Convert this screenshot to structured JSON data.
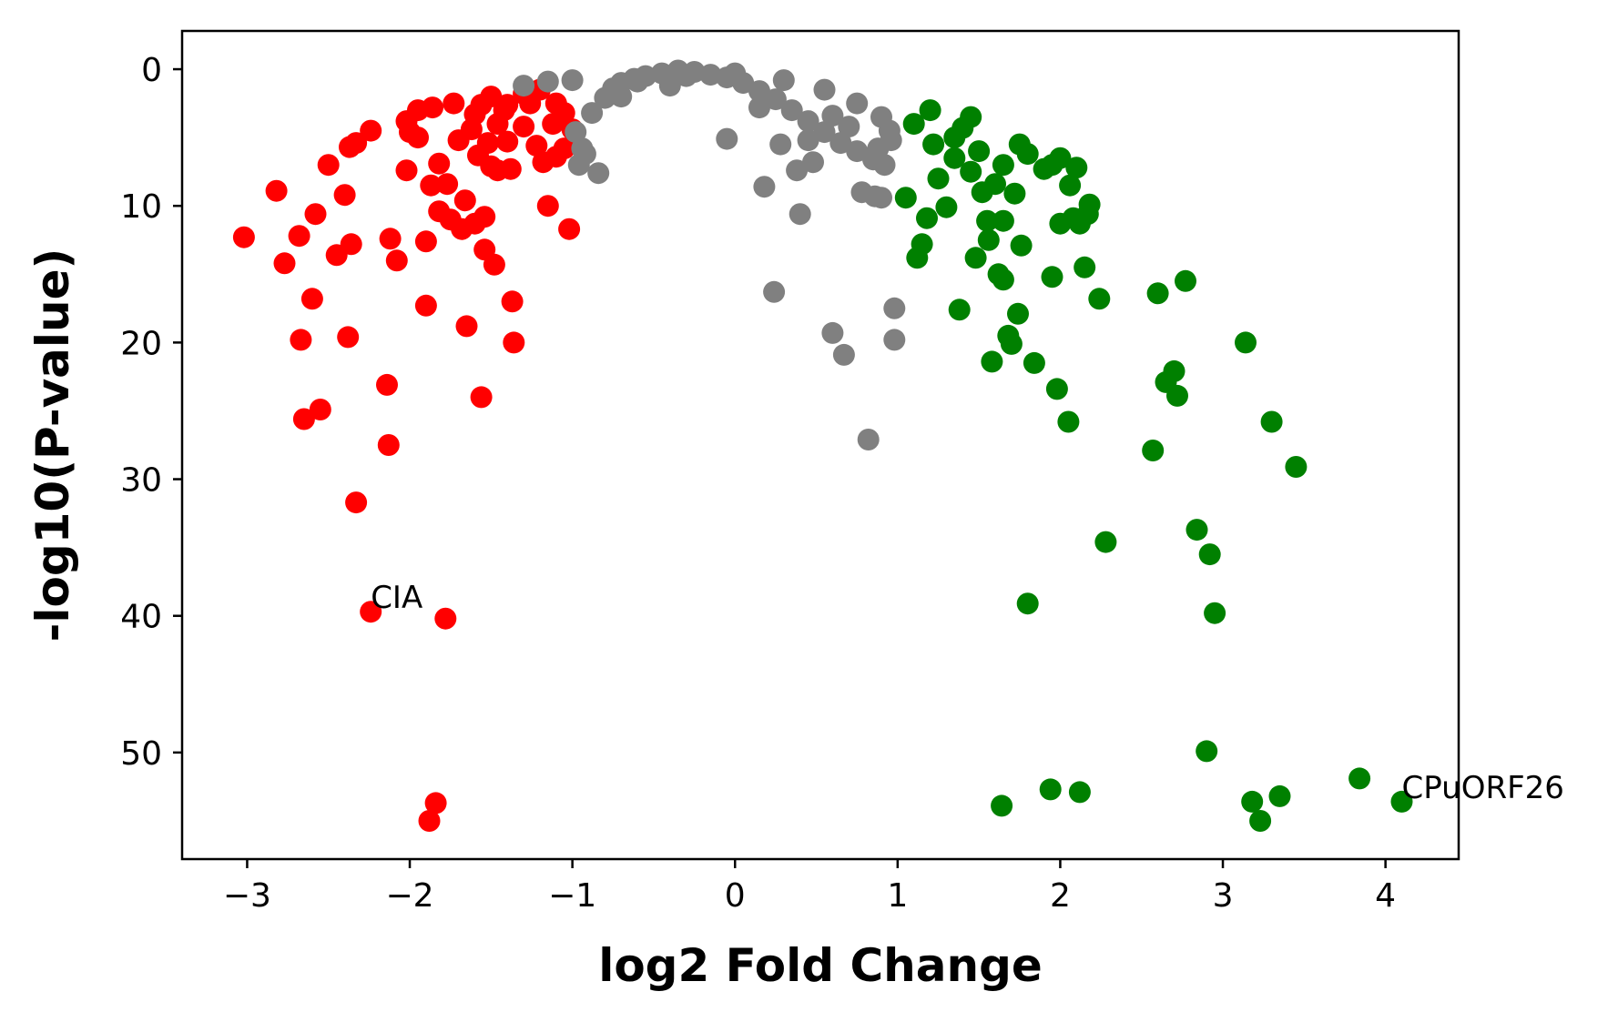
{
  "chart_data": {
    "type": "scatter",
    "title": "",
    "xlabel": "log2 Fold Change",
    "ylabel": "-log10(P-value)",
    "xlim": [
      -3.4,
      4.45
    ],
    "ylim": [
      -2.8,
      57.8
    ],
    "y_inverted": true,
    "grid": false,
    "legend": "none",
    "x_ticks": [
      -3,
      -2,
      -1,
      0,
      1,
      2,
      3,
      4
    ],
    "x_tick_labels": [
      "−3",
      "−2",
      "−1",
      "0",
      "1",
      "2",
      "3",
      "4"
    ],
    "y_ticks": [
      0,
      10,
      20,
      30,
      40,
      50
    ],
    "y_tick_labels": [
      "0",
      "10",
      "20",
      "30",
      "40",
      "50"
    ],
    "series": [
      {
        "color": "#ff0000",
        "points": [
          [
            -3.02,
            12.3
          ],
          [
            -2.82,
            8.9
          ],
          [
            -2.77,
            14.2
          ],
          [
            -2.68,
            12.2
          ],
          [
            -2.67,
            19.8
          ],
          [
            -2.65,
            25.6
          ],
          [
            -2.6,
            16.8
          ],
          [
            -2.58,
            10.6
          ],
          [
            -2.55,
            24.9
          ],
          [
            -2.5,
            7.0
          ],
          [
            -2.45,
            13.6
          ],
          [
            -2.4,
            9.2
          ],
          [
            -2.38,
            19.6
          ],
          [
            -2.37,
            5.7
          ],
          [
            -2.36,
            12.8
          ],
          [
            -2.33,
            5.4
          ],
          [
            -2.33,
            31.7
          ],
          [
            -2.24,
            4.5
          ],
          [
            -2.24,
            39.7
          ],
          [
            -2.14,
            23.1
          ],
          [
            -2.13,
            27.5
          ],
          [
            -2.12,
            12.4
          ],
          [
            -2.08,
            14.0
          ],
          [
            -2.02,
            3.8
          ],
          [
            -2.02,
            7.4
          ],
          [
            -2.0,
            4.6
          ],
          [
            -1.95,
            3.0
          ],
          [
            -1.95,
            5.0
          ],
          [
            -1.9,
            12.6
          ],
          [
            -1.9,
            17.3
          ],
          [
            -1.88,
            55.0
          ],
          [
            -1.87,
            8.5
          ],
          [
            -1.86,
            2.8
          ],
          [
            -1.84,
            53.7
          ],
          [
            -1.82,
            10.4
          ],
          [
            -1.82,
            6.9
          ],
          [
            -1.78,
            40.2
          ],
          [
            -1.77,
            8.4
          ],
          [
            -1.75,
            11.0
          ],
          [
            -1.73,
            2.5
          ],
          [
            -1.7,
            5.2
          ],
          [
            -1.68,
            11.7
          ],
          [
            -1.66,
            9.6
          ],
          [
            -1.65,
            18.8
          ],
          [
            -1.62,
            4.4
          ],
          [
            -1.6,
            11.3
          ],
          [
            -1.58,
            6.3
          ],
          [
            -1.56,
            2.6
          ],
          [
            -1.56,
            24.0
          ],
          [
            -1.54,
            10.8
          ],
          [
            -1.54,
            13.2
          ],
          [
            -1.52,
            5.4
          ],
          [
            -1.5,
            7.1
          ],
          [
            -1.48,
            14.3
          ],
          [
            -1.46,
            4.0
          ],
          [
            -1.46,
            7.4
          ],
          [
            -1.42,
            3.0
          ],
          [
            -1.4,
            5.3
          ],
          [
            -1.38,
            7.3
          ],
          [
            -1.37,
            17.0
          ],
          [
            -1.36,
            20.0
          ],
          [
            -1.3,
            4.2
          ],
          [
            -1.26,
            2.5
          ],
          [
            -1.22,
            5.6
          ],
          [
            -1.18,
            6.8
          ],
          [
            -1.15,
            10.0
          ],
          [
            -1.12,
            4.0
          ],
          [
            -1.1,
            2.5
          ],
          [
            -1.1,
            6.4
          ],
          [
            -1.02,
            11.7
          ],
          [
            -1.0,
            4.4
          ],
          [
            -1.3,
            1.8
          ],
          [
            -1.05,
            3.2
          ],
          [
            -1.5,
            2.0
          ],
          [
            -1.2,
            1.5
          ],
          [
            -1.6,
            3.3
          ],
          [
            -1.4,
            2.6
          ],
          [
            -1.05,
            5.8
          ]
        ]
      },
      {
        "color": "#808080",
        "points": [
          [
            -0.98,
            4.6
          ],
          [
            -0.96,
            7.0
          ],
          [
            -0.94,
            5.8
          ],
          [
            -0.92,
            6.2
          ],
          [
            -0.84,
            7.6
          ],
          [
            -0.88,
            3.2
          ],
          [
            -0.8,
            2.1
          ],
          [
            -0.75,
            1.4
          ],
          [
            -0.7,
            1.0
          ],
          [
            -0.62,
            0.7
          ],
          [
            -0.55,
            0.5
          ],
          [
            -0.45,
            0.3
          ],
          [
            -0.35,
            0.1
          ],
          [
            -0.25,
            0.2
          ],
          [
            -0.15,
            0.4
          ],
          [
            -0.05,
            0.6
          ],
          [
            0.05,
            1.0
          ],
          [
            0.15,
            1.6
          ],
          [
            0.25,
            2.2
          ],
          [
            0.35,
            3.0
          ],
          [
            0.45,
            3.8
          ],
          [
            0.55,
            4.6
          ],
          [
            0.65,
            5.4
          ],
          [
            0.75,
            6.0
          ],
          [
            0.85,
            6.6
          ],
          [
            0.92,
            7.0
          ],
          [
            0.96,
            5.2
          ],
          [
            -0.05,
            5.1
          ],
          [
            0.18,
            8.6
          ],
          [
            0.28,
            5.5
          ],
          [
            0.38,
            7.4
          ],
          [
            0.4,
            10.6
          ],
          [
            0.24,
            16.3
          ],
          [
            0.48,
            6.8
          ],
          [
            0.6,
            19.3
          ],
          [
            0.67,
            20.9
          ],
          [
            0.78,
            9.0
          ],
          [
            0.82,
            27.1
          ],
          [
            0.86,
            9.3
          ],
          [
            0.9,
            9.4
          ],
          [
            0.98,
            17.5
          ],
          [
            0.98,
            19.8
          ],
          [
            -1.3,
            1.2
          ],
          [
            -1.15,
            0.9
          ],
          [
            -1.0,
            0.8
          ],
          [
            -0.6,
            0.9
          ],
          [
            -0.3,
            0.5
          ],
          [
            0.0,
            0.3
          ],
          [
            0.3,
            0.8
          ],
          [
            0.55,
            1.5
          ],
          [
            0.75,
            2.5
          ],
          [
            0.9,
            3.5
          ],
          [
            0.95,
            4.5
          ],
          [
            -0.4,
            1.2
          ],
          [
            0.15,
            2.8
          ],
          [
            0.6,
            3.4
          ],
          [
            -0.7,
            2.0
          ],
          [
            0.45,
            5.2
          ],
          [
            0.7,
            4.2
          ],
          [
            0.88,
            5.8
          ]
        ]
      },
      {
        "color": "#008000",
        "points": [
          [
            1.05,
            9.4
          ],
          [
            1.12,
            13.8
          ],
          [
            1.15,
            12.8
          ],
          [
            1.18,
            10.9
          ],
          [
            1.22,
            5.5
          ],
          [
            1.25,
            8.0
          ],
          [
            1.3,
            10.1
          ],
          [
            1.35,
            6.5
          ],
          [
            1.38,
            17.6
          ],
          [
            1.4,
            4.3
          ],
          [
            1.45,
            7.5
          ],
          [
            1.48,
            13.8
          ],
          [
            1.52,
            9.0
          ],
          [
            1.55,
            11.1
          ],
          [
            1.56,
            12.5
          ],
          [
            1.58,
            21.4
          ],
          [
            1.62,
            15.0
          ],
          [
            1.64,
            53.9
          ],
          [
            1.65,
            11.1
          ],
          [
            1.65,
            15.4
          ],
          [
            1.68,
            19.5
          ],
          [
            1.7,
            20.1
          ],
          [
            1.72,
            9.1
          ],
          [
            1.74,
            17.9
          ],
          [
            1.76,
            12.9
          ],
          [
            1.8,
            39.1
          ],
          [
            1.84,
            21.5
          ],
          [
            1.9,
            7.3
          ],
          [
            1.94,
            52.7
          ],
          [
            1.95,
            15.2
          ],
          [
            1.98,
            23.4
          ],
          [
            2.0,
            11.3
          ],
          [
            2.05,
            25.8
          ],
          [
            2.06,
            8.5
          ],
          [
            2.08,
            10.9
          ],
          [
            2.12,
            52.9
          ],
          [
            2.12,
            11.3
          ],
          [
            2.15,
            14.5
          ],
          [
            2.17,
            10.6
          ],
          [
            2.18,
            9.9
          ],
          [
            2.24,
            16.8
          ],
          [
            2.28,
            34.6
          ],
          [
            2.57,
            27.9
          ],
          [
            2.6,
            16.4
          ],
          [
            2.65,
            22.9
          ],
          [
            2.7,
            22.1
          ],
          [
            2.72,
            23.9
          ],
          [
            2.77,
            15.5
          ],
          [
            2.84,
            33.7
          ],
          [
            2.9,
            49.9
          ],
          [
            2.92,
            35.5
          ],
          [
            2.95,
            39.8
          ],
          [
            3.14,
            20.0
          ],
          [
            3.18,
            53.6
          ],
          [
            3.23,
            55.0
          ],
          [
            3.3,
            25.8
          ],
          [
            3.35,
            53.2
          ],
          [
            3.45,
            29.1
          ],
          [
            3.84,
            51.9
          ],
          [
            4.1,
            53.6
          ],
          [
            1.1,
            4.0
          ],
          [
            1.2,
            3.0
          ],
          [
            1.35,
            5.0
          ],
          [
            1.5,
            6.0
          ],
          [
            1.65,
            7.0
          ],
          [
            1.8,
            6.2
          ],
          [
            1.95,
            7.0
          ],
          [
            2.1,
            7.2
          ],
          [
            1.6,
            8.4
          ],
          [
            1.45,
            3.5
          ],
          [
            1.75,
            5.5
          ],
          [
            2.0,
            6.5
          ]
        ]
      }
    ],
    "annotations": [
      {
        "text": "CIA",
        "x": -2.24,
        "y": 39.7
      },
      {
        "text": "CPuORF26",
        "x": 4.1,
        "y": 53.6
      }
    ]
  }
}
